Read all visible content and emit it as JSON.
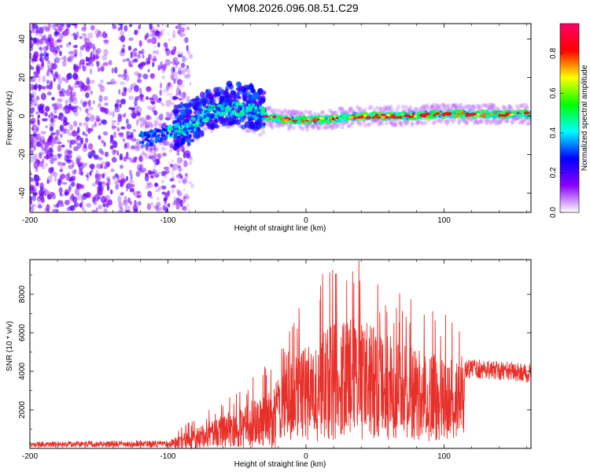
{
  "figure_title": "YM08.2026.096.08.51.C29",
  "chart_data": [
    {
      "type": "heatmap",
      "name": "spectrogram",
      "xlabel": "Height of straight line (km)",
      "ylabel": "Frequency (Hz)",
      "xlim": [
        -200,
        163
      ],
      "ylim": [
        -50,
        48
      ],
      "xticks": [
        -200,
        -100,
        0,
        100
      ],
      "yticks": [
        -40,
        -20,
        0,
        20,
        40
      ],
      "colorbar": {
        "label": "Normalized spectral amplitude",
        "range": [
          0,
          0.95
        ],
        "ticks": [
          0.0,
          0.2,
          0.4,
          0.6,
          0.8
        ],
        "colormap": [
          "#ffffff",
          "#8b00ff",
          "#0000ff",
          "#00ffff",
          "#00ff00",
          "#ffff00",
          "#ff0000",
          "#ff0066"
        ]
      },
      "ridge": [
        {
          "x": -115,
          "y": -12
        },
        {
          "x": -100,
          "y": -9
        },
        {
          "x": -85,
          "y": -6
        },
        {
          "x": -70,
          "y": 2
        },
        {
          "x": -55,
          "y": 4
        },
        {
          "x": -40,
          "y": 3
        },
        {
          "x": -25,
          "y": -1
        },
        {
          "x": -10,
          "y": -2
        },
        {
          "x": 10,
          "y": -2
        },
        {
          "x": 40,
          "y": 0
        },
        {
          "x": 70,
          "y": 0
        },
        {
          "x": 100,
          "y": 1
        },
        {
          "x": 130,
          "y": 1
        },
        {
          "x": 163,
          "y": 1
        }
      ]
    },
    {
      "type": "line",
      "name": "snr",
      "xlabel": "Height of straight line (km)",
      "ylabel": "SNR (10 * v/v)",
      "xlim": [
        -200,
        163
      ],
      "ylim": [
        0,
        9800
      ],
      "xticks": [
        -200,
        -100,
        0,
        100
      ],
      "yticks": [
        2000,
        4000,
        6000,
        8000
      ],
      "color": "#e8302a",
      "envelope": [
        {
          "x": -200,
          "y": 300
        },
        {
          "x": -100,
          "y": 350
        },
        {
          "x": -85,
          "y": 800
        },
        {
          "x": -60,
          "y": 1500
        },
        {
          "x": -30,
          "y": 2500
        },
        {
          "x": -10,
          "y": 4000
        },
        {
          "x": 15,
          "y": 5500
        },
        {
          "x": 40,
          "y": 6000
        },
        {
          "x": 70,
          "y": 4700
        },
        {
          "x": 100,
          "y": 4200
        },
        {
          "x": 130,
          "y": 4100
        },
        {
          "x": 163,
          "y": 3900
        }
      ]
    }
  ]
}
